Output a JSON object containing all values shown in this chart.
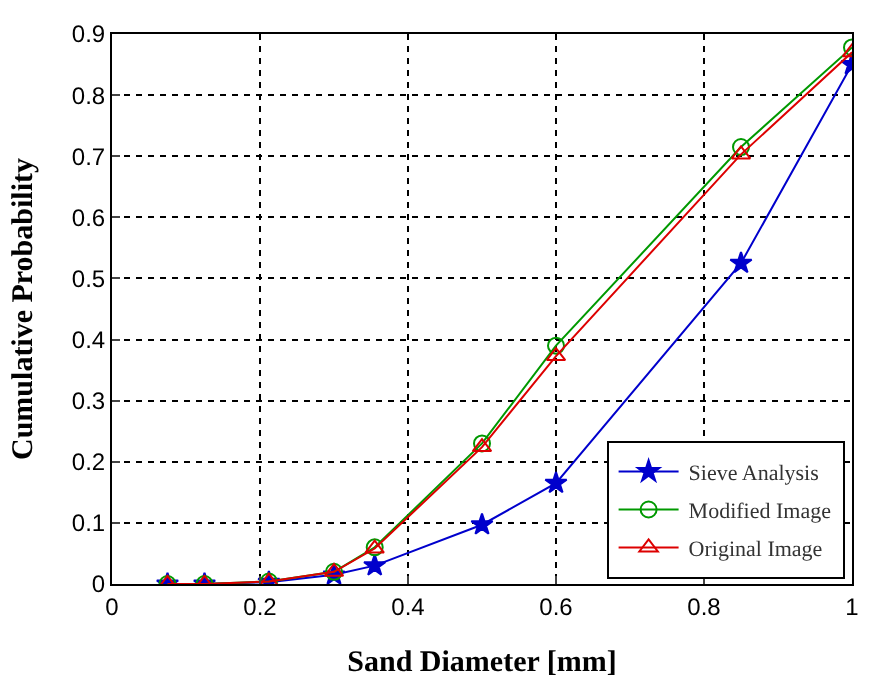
{
  "chart_data": {
    "type": "line",
    "xlabel": "Sand Diameter [mm]",
    "ylabel": "Cumulative Probability",
    "x": [
      0.075,
      0.125,
      0.212,
      0.3,
      0.355,
      0.5,
      0.6,
      0.85,
      1.0
    ],
    "series": [
      {
        "name": "Sieve Analysis",
        "color": "#0000cc",
        "marker": "star",
        "values": [
          0.0,
          0.0,
          0.003,
          0.015,
          0.03,
          0.097,
          0.165,
          0.525,
          0.85
        ]
      },
      {
        "name": "Modified Image",
        "color": "#009900",
        "marker": "circle",
        "values": [
          0.0,
          0.0,
          0.004,
          0.02,
          0.06,
          0.23,
          0.39,
          0.715,
          0.878
        ]
      },
      {
        "name": "Original Image",
        "color": "#dd0000",
        "marker": "triangle",
        "values": [
          0.0,
          0.0,
          0.004,
          0.02,
          0.058,
          0.224,
          0.373,
          0.703,
          0.87
        ]
      }
    ],
    "xlim": [
      0,
      1
    ],
    "xticks": [
      0,
      0.2,
      0.4,
      0.6,
      0.8,
      1
    ],
    "ylim": [
      0,
      0.9
    ],
    "yticks": [
      0,
      0.1,
      0.2,
      0.3,
      0.4,
      0.5,
      0.6,
      0.7,
      0.8,
      0.9
    ],
    "grid": true,
    "legend": "bottom right",
    "line_style": "solid"
  }
}
